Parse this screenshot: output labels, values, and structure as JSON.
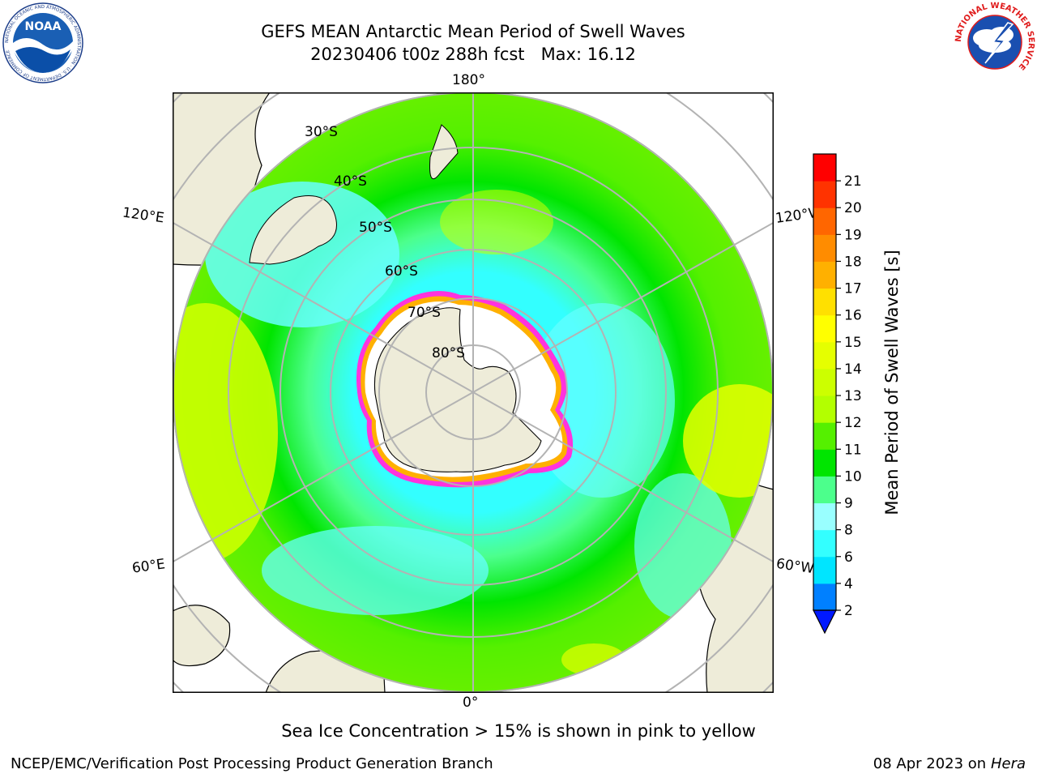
{
  "header": {
    "title_line1": "GEFS MEAN Antarctic Mean Period of Swell Waves",
    "title_line2": "20230406 t00z 288h fcst   Max: 16.12",
    "noaa_logo_text": "NOAA",
    "noaa_ring_text": "NATIONAL OCEANIC AND ATMOSPHERIC ADMINISTRATION · U.S. DEPARTMENT OF COMMERCE",
    "nws_ring_text": "NATIONAL WEATHER SERVICE"
  },
  "map": {
    "longitude_labels": {
      "top": "180°",
      "bottom": "0°",
      "upper_left": "120°E",
      "upper_right": "120°W",
      "lower_left": "60°E",
      "lower_right": "60°W"
    },
    "latitude_labels": [
      "30°S",
      "40°S",
      "50°S",
      "60°S",
      "70°S",
      "80°S"
    ],
    "projection": "south polar stereographic",
    "grid": true,
    "colors": {
      "land": "#eeecd9",
      "sea_ice": "#ffffff",
      "ice_edge": [
        "#ff33dd",
        "#ffb000",
        "#ffee00"
      ],
      "grid": "#b3b3b3"
    }
  },
  "colorbar": {
    "label": "Mean Period of Swell Waves [s]",
    "tick_labels": [
      "2",
      "4",
      "6",
      "8",
      "9",
      "10",
      "11",
      "12",
      "13",
      "14",
      "15",
      "16",
      "17",
      "18",
      "19",
      "20",
      "21"
    ],
    "colors": [
      "#0019ff",
      "#0080ff",
      "#00e5ff",
      "#33ffff",
      "#99ffff",
      "#4cff8c",
      "#00e500",
      "#55f000",
      "#b3ff00",
      "#ccff00",
      "#e5ff00",
      "#ffff00",
      "#ffe000",
      "#ffb000",
      "#ff8c00",
      "#ff6600",
      "#ff3300",
      "#ff0000"
    ],
    "extend": "min"
  },
  "chart_data": {
    "type": "heatmap",
    "title": "GEFS MEAN Antarctic Mean Period of Swell Waves",
    "subtitle": "20230406 t00z 288h fcst   Max: 16.12",
    "variable": "Mean Period of Swell Waves [s]",
    "max": 16.12,
    "levels": [
      2,
      4,
      6,
      8,
      9,
      10,
      11,
      12,
      13,
      14,
      15,
      16,
      17,
      18,
      19,
      20,
      21
    ],
    "dominant_range": [
      8,
      14
    ],
    "annotation": "Sea Ice Concentration > 15% is shown in pink to yellow"
  },
  "footer": {
    "note": "Sea Ice Concentration > 15% is shown in pink to yellow",
    "left_credit": "NCEP/EMC/Verification Post Processing Product Generation Branch",
    "right_date": "08 Apr 2023 on ",
    "right_host": "Hera"
  }
}
